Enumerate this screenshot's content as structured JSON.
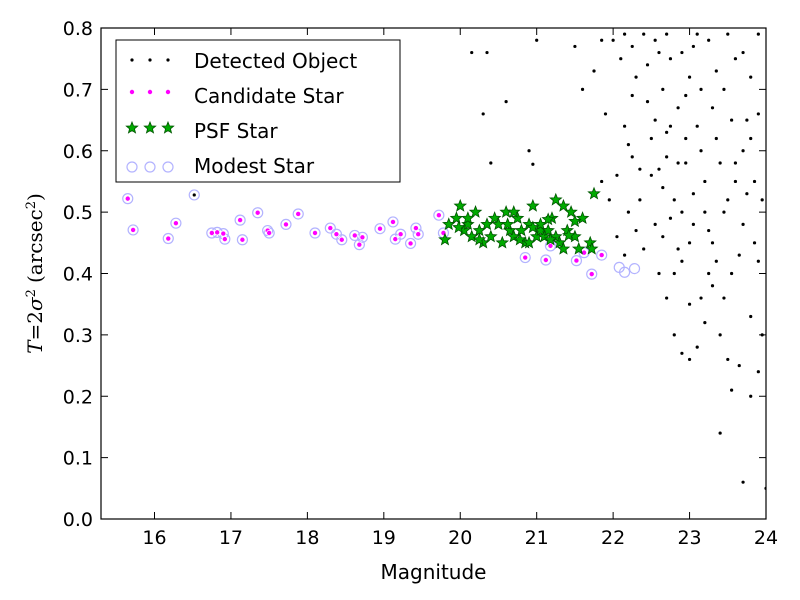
{
  "chart_data": {
    "type": "scatter",
    "title": "",
    "xlabel": "Magnitude",
    "ylabel": {
      "T": "T",
      "eq": "=",
      "two": "2",
      "sigma": "σ",
      "sq": "2",
      "units_open": "(arcsec",
      "units_sq": "2",
      "units_close": ")"
    },
    "xlim": [
      15.3,
      24
    ],
    "ylim": [
      0.0,
      0.8
    ],
    "xticks": [
      16,
      17,
      18,
      19,
      20,
      21,
      22,
      23,
      24
    ],
    "yticks": [
      0.0,
      0.1,
      0.2,
      0.3,
      0.4,
      0.5,
      0.6,
      0.7,
      0.8
    ],
    "legend_position": "top-left",
    "grid": false,
    "series": [
      {
        "name": "Detected Object",
        "marker": "dot",
        "color": "#000000",
        "points": [
          [
            16.52,
            0.528
          ],
          [
            20.9,
            0.6
          ],
          [
            20.95,
            0.578
          ],
          [
            20.6,
            0.68
          ],
          [
            20.15,
            0.76
          ],
          [
            20.35,
            0.76
          ],
          [
            20.4,
            0.58
          ],
          [
            20.3,
            0.66
          ],
          [
            21.0,
            0.78
          ],
          [
            21.5,
            0.77
          ],
          [
            21.6,
            0.7
          ],
          [
            21.75,
            0.73
          ],
          [
            21.9,
            0.66
          ],
          [
            22.0,
            0.78
          ],
          [
            22.1,
            0.75
          ],
          [
            22.2,
            0.61
          ],
          [
            22.3,
            0.72
          ],
          [
            22.35,
            0.52
          ],
          [
            22.45,
            0.68
          ],
          [
            22.55,
            0.78
          ],
          [
            22.6,
            0.57
          ],
          [
            22.65,
            0.46
          ],
          [
            22.7,
            0.63
          ],
          [
            22.75,
            0.75
          ],
          [
            22.8,
            0.52
          ],
          [
            22.85,
            0.67
          ],
          [
            22.9,
            0.42
          ],
          [
            22.95,
            0.58
          ],
          [
            23.0,
            0.72
          ],
          [
            23.05,
            0.48
          ],
          [
            23.1,
            0.64
          ],
          [
            23.15,
            0.36
          ],
          [
            23.2,
            0.55
          ],
          [
            23.25,
            0.78
          ],
          [
            23.3,
            0.45
          ],
          [
            23.35,
            0.62
          ],
          [
            23.4,
            0.3
          ],
          [
            23.45,
            0.7
          ],
          [
            23.5,
            0.52
          ],
          [
            23.55,
            0.4
          ],
          [
            23.6,
            0.58
          ],
          [
            23.65,
            0.25
          ],
          [
            23.7,
            0.48
          ],
          [
            23.75,
            0.65
          ],
          [
            23.8,
            0.33
          ],
          [
            23.85,
            0.55
          ],
          [
            23.9,
            0.42
          ],
          [
            23.95,
            0.3
          ],
          [
            23.4,
            0.14
          ],
          [
            23.7,
            0.06
          ],
          [
            23.55,
            0.21
          ],
          [
            23.8,
            0.2
          ],
          [
            24.0,
            0.05
          ],
          [
            23.5,
            0.26
          ],
          [
            23.9,
            0.24
          ],
          [
            22.4,
            0.44
          ],
          [
            22.5,
            0.62
          ],
          [
            22.15,
            0.43
          ],
          [
            22.25,
            0.59
          ],
          [
            22.05,
            0.46
          ],
          [
            21.95,
            0.52
          ],
          [
            21.85,
            0.55
          ],
          [
            22.6,
            0.4
          ],
          [
            22.7,
            0.36
          ],
          [
            22.8,
            0.3
          ],
          [
            23.0,
            0.35
          ],
          [
            23.1,
            0.28
          ],
          [
            23.2,
            0.32
          ],
          [
            23.3,
            0.38
          ],
          [
            22.9,
            0.27
          ],
          [
            23.0,
            0.26
          ],
          [
            22.85,
            0.58
          ],
          [
            22.95,
            0.69
          ],
          [
            23.05,
            0.77
          ],
          [
            22.65,
            0.7
          ],
          [
            22.55,
            0.65
          ],
          [
            22.45,
            0.74
          ],
          [
            22.25,
            0.69
          ],
          [
            22.15,
            0.79
          ],
          [
            21.85,
            0.78
          ],
          [
            23.6,
            0.75
          ],
          [
            23.7,
            0.6
          ],
          [
            23.8,
            0.72
          ],
          [
            23.9,
            0.66
          ],
          [
            23.95,
            0.52
          ],
          [
            23.45,
            0.5
          ],
          [
            23.35,
            0.42
          ],
          [
            23.25,
            0.47
          ],
          [
            23.15,
            0.6
          ],
          [
            23.05,
            0.53
          ],
          [
            22.75,
            0.49
          ],
          [
            22.65,
            0.54
          ],
          [
            22.55,
            0.48
          ],
          [
            22.35,
            0.57
          ],
          [
            22.75,
            0.64
          ],
          [
            22.85,
            0.44
          ],
          [
            23.15,
            0.7
          ],
          [
            23.35,
            0.73
          ],
          [
            23.55,
            0.65
          ],
          [
            23.75,
            0.53
          ],
          [
            23.85,
            0.45
          ],
          [
            23.65,
            0.43
          ],
          [
            23.45,
            0.36
          ],
          [
            23.25,
            0.4
          ],
          [
            22.05,
            0.56
          ],
          [
            22.15,
            0.64
          ],
          [
            22.25,
            0.77
          ],
          [
            22.4,
            0.79
          ],
          [
            22.6,
            0.76
          ],
          [
            22.7,
            0.79
          ],
          [
            22.9,
            0.76
          ],
          [
            23.1,
            0.79
          ],
          [
            23.3,
            0.67
          ],
          [
            23.5,
            0.79
          ],
          [
            23.7,
            0.76
          ],
          [
            23.9,
            0.79
          ],
          [
            22.2,
            0.5
          ],
          [
            22.3,
            0.47
          ],
          [
            22.9,
            0.5
          ],
          [
            23.2,
            0.5
          ],
          [
            22.95,
            0.62
          ],
          [
            22.7,
            0.59
          ],
          [
            22.5,
            0.56
          ],
          [
            23.6,
            0.55
          ],
          [
            23.8,
            0.62
          ],
          [
            23.4,
            0.58
          ],
          [
            23.0,
            0.45
          ],
          [
            22.8,
            0.4
          ]
        ]
      },
      {
        "name": "Candidate Star",
        "marker": "small-circle",
        "color": "#ff00ff",
        "points": [
          [
            15.65,
            0.522
          ],
          [
            15.72,
            0.471
          ],
          [
            16.18,
            0.457
          ],
          [
            16.28,
            0.482
          ],
          [
            16.75,
            0.466
          ],
          [
            16.82,
            0.467
          ],
          [
            16.9,
            0.465
          ],
          [
            16.92,
            0.456
          ],
          [
            17.12,
            0.487
          ],
          [
            17.15,
            0.455
          ],
          [
            17.35,
            0.499
          ],
          [
            17.48,
            0.47
          ],
          [
            17.5,
            0.466
          ],
          [
            17.72,
            0.48
          ],
          [
            17.88,
            0.497
          ],
          [
            18.1,
            0.466
          ],
          [
            18.3,
            0.474
          ],
          [
            18.38,
            0.464
          ],
          [
            18.45,
            0.455
          ],
          [
            18.62,
            0.462
          ],
          [
            18.68,
            0.447
          ],
          [
            18.72,
            0.459
          ],
          [
            18.95,
            0.473
          ],
          [
            19.12,
            0.484
          ],
          [
            19.15,
            0.456
          ],
          [
            19.22,
            0.464
          ],
          [
            19.35,
            0.449
          ],
          [
            19.42,
            0.474
          ],
          [
            19.45,
            0.464
          ],
          [
            19.72,
            0.495
          ],
          [
            19.78,
            0.466
          ],
          [
            20.85,
            0.426
          ],
          [
            21.12,
            0.422
          ],
          [
            21.18,
            0.445
          ],
          [
            21.52,
            0.421
          ],
          [
            21.62,
            0.434
          ],
          [
            21.85,
            0.43
          ],
          [
            21.72,
            0.399
          ]
        ]
      },
      {
        "name": "PSF Star",
        "marker": "star",
        "color": "#00aa00",
        "points": [
          [
            19.8,
            0.455
          ],
          [
            19.85,
            0.48
          ],
          [
            19.95,
            0.49
          ],
          [
            20.0,
            0.51
          ],
          [
            20.05,
            0.47
          ],
          [
            20.1,
            0.48
          ],
          [
            20.15,
            0.46
          ],
          [
            20.2,
            0.5
          ],
          [
            20.25,
            0.47
          ],
          [
            20.3,
            0.45
          ],
          [
            20.35,
            0.48
          ],
          [
            20.45,
            0.49
          ],
          [
            20.55,
            0.45
          ],
          [
            20.6,
            0.5
          ],
          [
            20.65,
            0.47
          ],
          [
            20.7,
            0.46
          ],
          [
            20.75,
            0.49
          ],
          [
            20.8,
            0.47
          ],
          [
            20.85,
            0.45
          ],
          [
            20.9,
            0.48
          ],
          [
            20.95,
            0.51
          ],
          [
            21.0,
            0.46
          ],
          [
            21.05,
            0.47
          ],
          [
            21.1,
            0.46
          ],
          [
            21.15,
            0.47
          ],
          [
            21.2,
            0.49
          ],
          [
            21.25,
            0.52
          ],
          [
            21.3,
            0.45
          ],
          [
            21.35,
            0.51
          ],
          [
            21.4,
            0.47
          ],
          [
            21.45,
            0.5
          ],
          [
            21.5,
            0.46
          ],
          [
            21.55,
            0.44
          ],
          [
            21.6,
            0.49
          ],
          [
            21.7,
            0.45
          ],
          [
            21.75,
            0.53
          ],
          [
            21.72,
            0.44
          ],
          [
            20.7,
            0.5
          ],
          [
            20.9,
            0.45
          ],
          [
            21.05,
            0.48
          ],
          [
            21.25,
            0.46
          ],
          [
            21.35,
            0.44
          ],
          [
            20.5,
            0.48
          ],
          [
            20.78,
            0.455
          ],
          [
            21.15,
            0.488
          ],
          [
            21.42,
            0.462
          ],
          [
            20.25,
            0.455
          ],
          [
            20.62,
            0.48
          ],
          [
            20.95,
            0.475
          ],
          [
            21.18,
            0.455
          ],
          [
            21.5,
            0.485
          ],
          [
            19.98,
            0.475
          ],
          [
            20.1,
            0.49
          ],
          [
            20.4,
            0.46
          ]
        ]
      },
      {
        "name": "Modest Star",
        "marker": "open-circle",
        "color": "#b3b3ff",
        "points": [
          [
            15.65,
            0.522
          ],
          [
            15.72,
            0.471
          ],
          [
            16.18,
            0.457
          ],
          [
            16.28,
            0.482
          ],
          [
            16.52,
            0.528
          ],
          [
            16.75,
            0.466
          ],
          [
            16.82,
            0.467
          ],
          [
            16.9,
            0.465
          ],
          [
            16.92,
            0.456
          ],
          [
            17.12,
            0.487
          ],
          [
            17.15,
            0.455
          ],
          [
            17.35,
            0.499
          ],
          [
            17.48,
            0.47
          ],
          [
            17.5,
            0.466
          ],
          [
            17.72,
            0.48
          ],
          [
            17.88,
            0.497
          ],
          [
            18.1,
            0.466
          ],
          [
            18.3,
            0.474
          ],
          [
            18.38,
            0.464
          ],
          [
            18.45,
            0.455
          ],
          [
            18.62,
            0.462
          ],
          [
            18.68,
            0.447
          ],
          [
            18.72,
            0.459
          ],
          [
            18.95,
            0.473
          ],
          [
            19.12,
            0.484
          ],
          [
            19.15,
            0.456
          ],
          [
            19.22,
            0.464
          ],
          [
            19.35,
            0.449
          ],
          [
            19.42,
            0.474
          ],
          [
            19.45,
            0.464
          ],
          [
            19.72,
            0.495
          ],
          [
            19.78,
            0.466
          ],
          [
            20.85,
            0.426
          ],
          [
            21.12,
            0.422
          ],
          [
            21.18,
            0.445
          ],
          [
            21.52,
            0.421
          ],
          [
            21.62,
            0.434
          ],
          [
            21.85,
            0.43
          ],
          [
            21.72,
            0.399
          ],
          [
            22.08,
            0.41
          ],
          [
            22.15,
            0.402
          ],
          [
            22.28,
            0.408
          ]
        ]
      }
    ]
  }
}
